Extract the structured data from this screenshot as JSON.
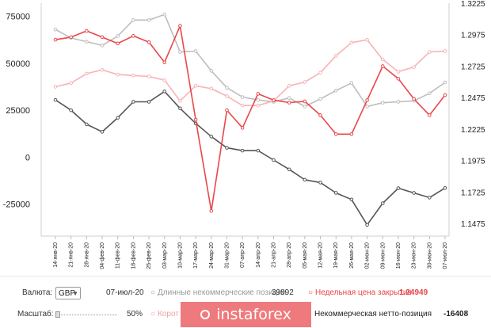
{
  "chart_data": {
    "type": "line",
    "categories": [
      "14-янв-20",
      "21-янв-20",
      "28-янв-20",
      "04-фев-20",
      "11-фев-20",
      "18-фев-20",
      "25-фев-20",
      "03-мар-20",
      "10-мар-20",
      "17-мар-20",
      "24-мар-20",
      "31-мар-20",
      "07-апр-20",
      "14-апр-20",
      "21-апр-20",
      "28-апр-20",
      "05-мая-20",
      "12-мая-20",
      "19-мая-20",
      "26-мая-20",
      "02-июн-20",
      "09-июн-20",
      "16-июн-20",
      "23-июн-20",
      "30-июн-20",
      "07-июл-20"
    ],
    "left_axis": {
      "ylim": [
        -42000,
        82000
      ],
      "ticks": [
        -25000,
        0,
        25000,
        50000,
        75000
      ]
    },
    "right_axis": {
      "ylim": [
        1.1375,
        1.3225
      ],
      "ticks": [
        1.1475,
        1.1725,
        1.1975,
        1.2225,
        1.2475,
        1.2725,
        1.2975,
        1.3225
      ]
    },
    "series": [
      {
        "axis": "left",
        "color": "#bdbdbd",
        "values": [
          68000,
          63500,
          61500,
          59500,
          64500,
          73000,
          73000,
          76000,
          56000,
          56500,
          46000,
          37000,
          32000,
          30500,
          29500,
          31500,
          27000,
          31000,
          35500,
          39500,
          27000,
          29000,
          29500,
          30000,
          34000,
          39800
        ]
      },
      {
        "axis": "left",
        "color": "#f7b3b6",
        "values": [
          37500,
          39500,
          44500,
          46500,
          44000,
          43500,
          43000,
          41000,
          30000,
          38000,
          36500,
          32500,
          27500,
          27500,
          30000,
          38000,
          40000,
          45000,
          54000,
          61000,
          62500,
          52000,
          45500,
          48000,
          56000,
          56500
        ]
      },
      {
        "axis": "left",
        "color": "#555555",
        "values": [
          30500,
          25000,
          17500,
          13500,
          21000,
          29500,
          29500,
          35000,
          26000,
          18000,
          11000,
          5000,
          3500,
          3500,
          -1500,
          -6500,
          -12000,
          -13500,
          -19000,
          -22500,
          -36000,
          -24500,
          -16500,
          -19000,
          -21500,
          -16400
        ]
      },
      {
        "axis": "right",
        "color": "#e8474b",
        "values": [
          1.2935,
          1.2955,
          1.3005,
          1.2955,
          1.2905,
          1.2965,
          1.2915,
          1.2755,
          1.3045,
          1.23,
          1.1575,
          1.2375,
          1.2235,
          1.2505,
          1.2455,
          1.2435,
          1.2445,
          1.2335,
          1.2185,
          1.2185,
          1.2455,
          1.2725,
          1.2625,
          1.2465,
          1.2335,
          1.2495
        ]
      }
    ]
  },
  "tick_labels_right_top": "1.3225",
  "controls": {
    "currency_label": "Валюта:",
    "currency_value": "GBP",
    "date": "07-июл-20",
    "long_label": "Длинные некоммерческие позиции",
    "long_value": "39892",
    "close_label": "Недельная цена закрытия",
    "close_value": "1.24949",
    "scale_label": "Масштаб:",
    "scale_value": "50%",
    "short_label": "Корот",
    "net_label": "Некоммерческая нетто-позиция",
    "net_value": "-16408"
  },
  "watermark": "instaforex",
  "colors": {
    "long": "#bdbdbd",
    "short": "#f7b3b6",
    "net": "#555555",
    "close": "#e8474b",
    "watermark_bg": "#ef7a7d"
  }
}
